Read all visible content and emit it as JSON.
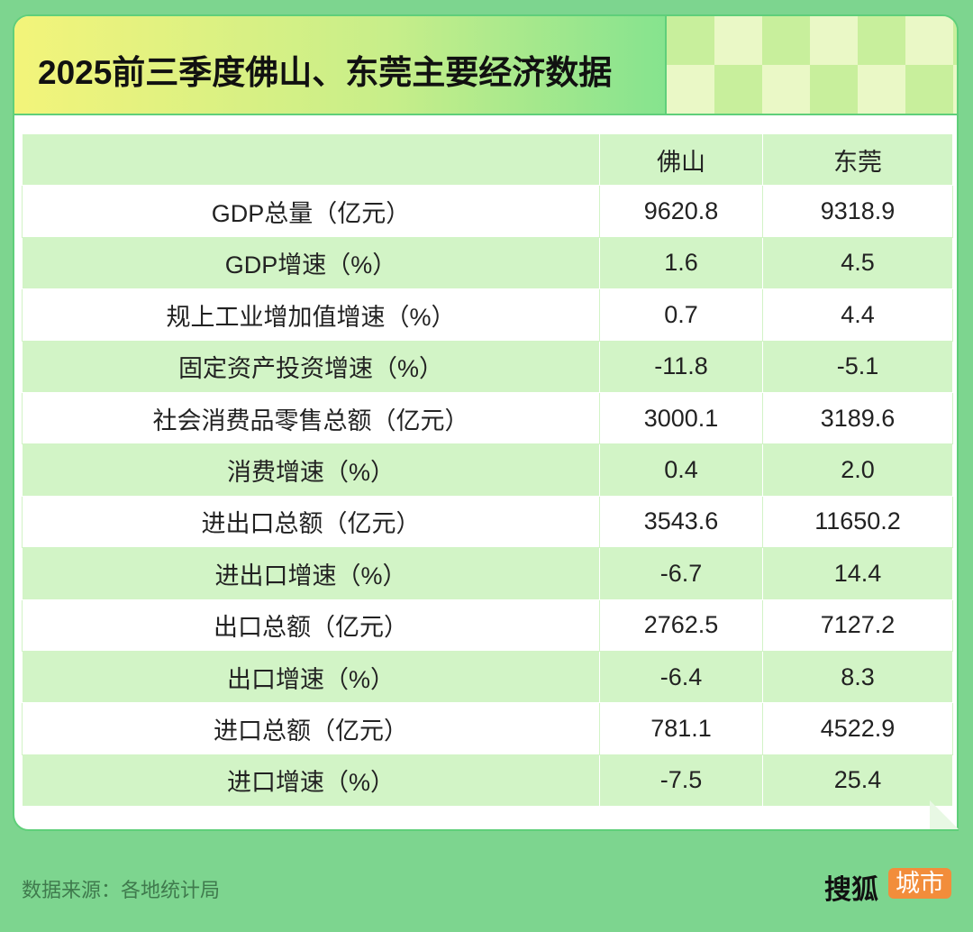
{
  "header": {
    "title": "2025前三季度佛山、东莞主要经济数据"
  },
  "table": {
    "columns": [
      "佛山",
      "东莞"
    ],
    "rows": [
      [
        "GDP总量（亿元）",
        "9620.8",
        "9318.9"
      ],
      [
        "GDP增速（%）",
        "1.6",
        "4.5"
      ],
      [
        "规上工业增加值增速（%）",
        "0.7",
        "4.4"
      ],
      [
        "固定资产投资增速（%）",
        "-11.8",
        "-5.1"
      ],
      [
        "社会消费品零售总额（亿元）",
        "3000.1",
        "3189.6"
      ],
      [
        "消费增速（%）",
        "0.4",
        "2.0"
      ],
      [
        "进出口总额（亿元）",
        "3543.6",
        "11650.2"
      ],
      [
        "进出口增速（%）",
        "-6.7",
        "14.4"
      ],
      [
        "出口总额（亿元）",
        "2762.5",
        "7127.2"
      ],
      [
        "出口增速（%）",
        "-6.4",
        "8.3"
      ],
      [
        "进口总额（亿元）",
        "781.1",
        "4522.9"
      ],
      [
        "进口增速（%）",
        "-7.5",
        "25.4"
      ]
    ]
  },
  "footer": {
    "source": "数据来源：各地统计局",
    "brand": "搜狐",
    "brand_tag": "城市"
  }
}
